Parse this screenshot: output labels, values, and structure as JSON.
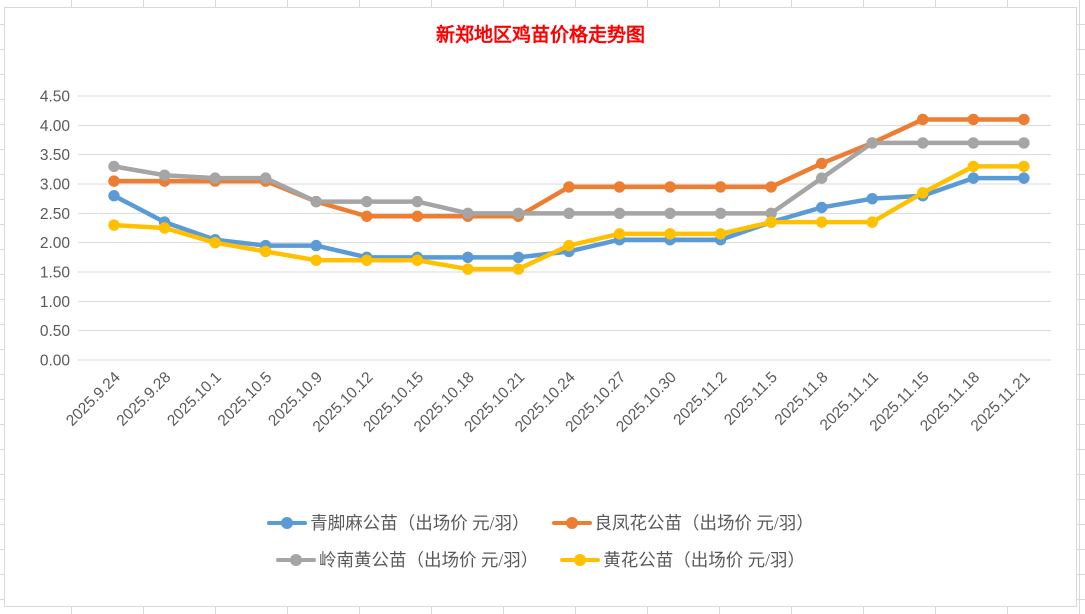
{
  "title": "新郑地区鸡苗价格走势图",
  "chart_data": {
    "type": "line",
    "title": "新郑地区鸡苗价格走势图",
    "categories": [
      "2025.9.24",
      "2025.9.28",
      "2025.10.1",
      "2025.10.5",
      "2025.10.9",
      "2025.10.12",
      "2025.10.15",
      "2025.10.18",
      "2025.10.21",
      "2025.10.24",
      "2025.10.27",
      "2025.10.30",
      "2025.11.2",
      "2025.11.5",
      "2025.11.8",
      "2025.11.11",
      "2025.11.15",
      "2025.11.18",
      "2025.11.21"
    ],
    "series": [
      {
        "name": "青脚麻公苗（出场价 元/羽）",
        "color": "#5B9BD5",
        "values": [
          2.8,
          2.35,
          2.05,
          1.95,
          1.95,
          1.75,
          1.75,
          1.75,
          1.75,
          1.85,
          2.05,
          2.05,
          2.05,
          2.35,
          2.6,
          2.75,
          2.8,
          3.1,
          3.1
        ]
      },
      {
        "name": "良凤花公苗（出场价 元/羽）",
        "color": "#ED7D31",
        "values": [
          3.05,
          3.05,
          3.05,
          3.05,
          2.7,
          2.45,
          2.45,
          2.45,
          2.45,
          2.95,
          2.95,
          2.95,
          2.95,
          2.95,
          3.35,
          3.7,
          4.1,
          4.1,
          4.1
        ]
      },
      {
        "name": "岭南黄公苗（出场价 元/羽）",
        "color": "#A5A5A5",
        "values": [
          3.3,
          3.15,
          3.1,
          3.1,
          2.7,
          2.7,
          2.7,
          2.5,
          2.5,
          2.5,
          2.5,
          2.5,
          2.5,
          2.5,
          3.1,
          3.7,
          3.7,
          3.7,
          3.7
        ]
      },
      {
        "name": "黄花公苗（出场价 元/羽）",
        "color": "#FFC000",
        "values": [
          2.3,
          2.25,
          2.0,
          1.85,
          1.7,
          1.7,
          1.7,
          1.55,
          1.55,
          1.95,
          2.15,
          2.15,
          2.15,
          2.35,
          2.35,
          2.35,
          2.85,
          3.3,
          3.3
        ]
      }
    ],
    "xlabel": "",
    "ylabel": "",
    "ylim": [
      0,
      4.5
    ],
    "ytick_labels": [
      "0.00",
      "0.50",
      "1.00",
      "1.50",
      "2.00",
      "2.50",
      "3.00",
      "3.50",
      "4.00",
      "4.50"
    ],
    "grid": true,
    "legend_position": "bottom",
    "legend_rows": [
      [
        0,
        1
      ],
      [
        2,
        3
      ]
    ]
  },
  "styles": {
    "title_color": "#FF0000",
    "axis_label_color": "#595959",
    "gridline_color": "#D9D9D9",
    "chart_border_color": "#D9D9D9",
    "background_color": "#FFFFFF"
  }
}
